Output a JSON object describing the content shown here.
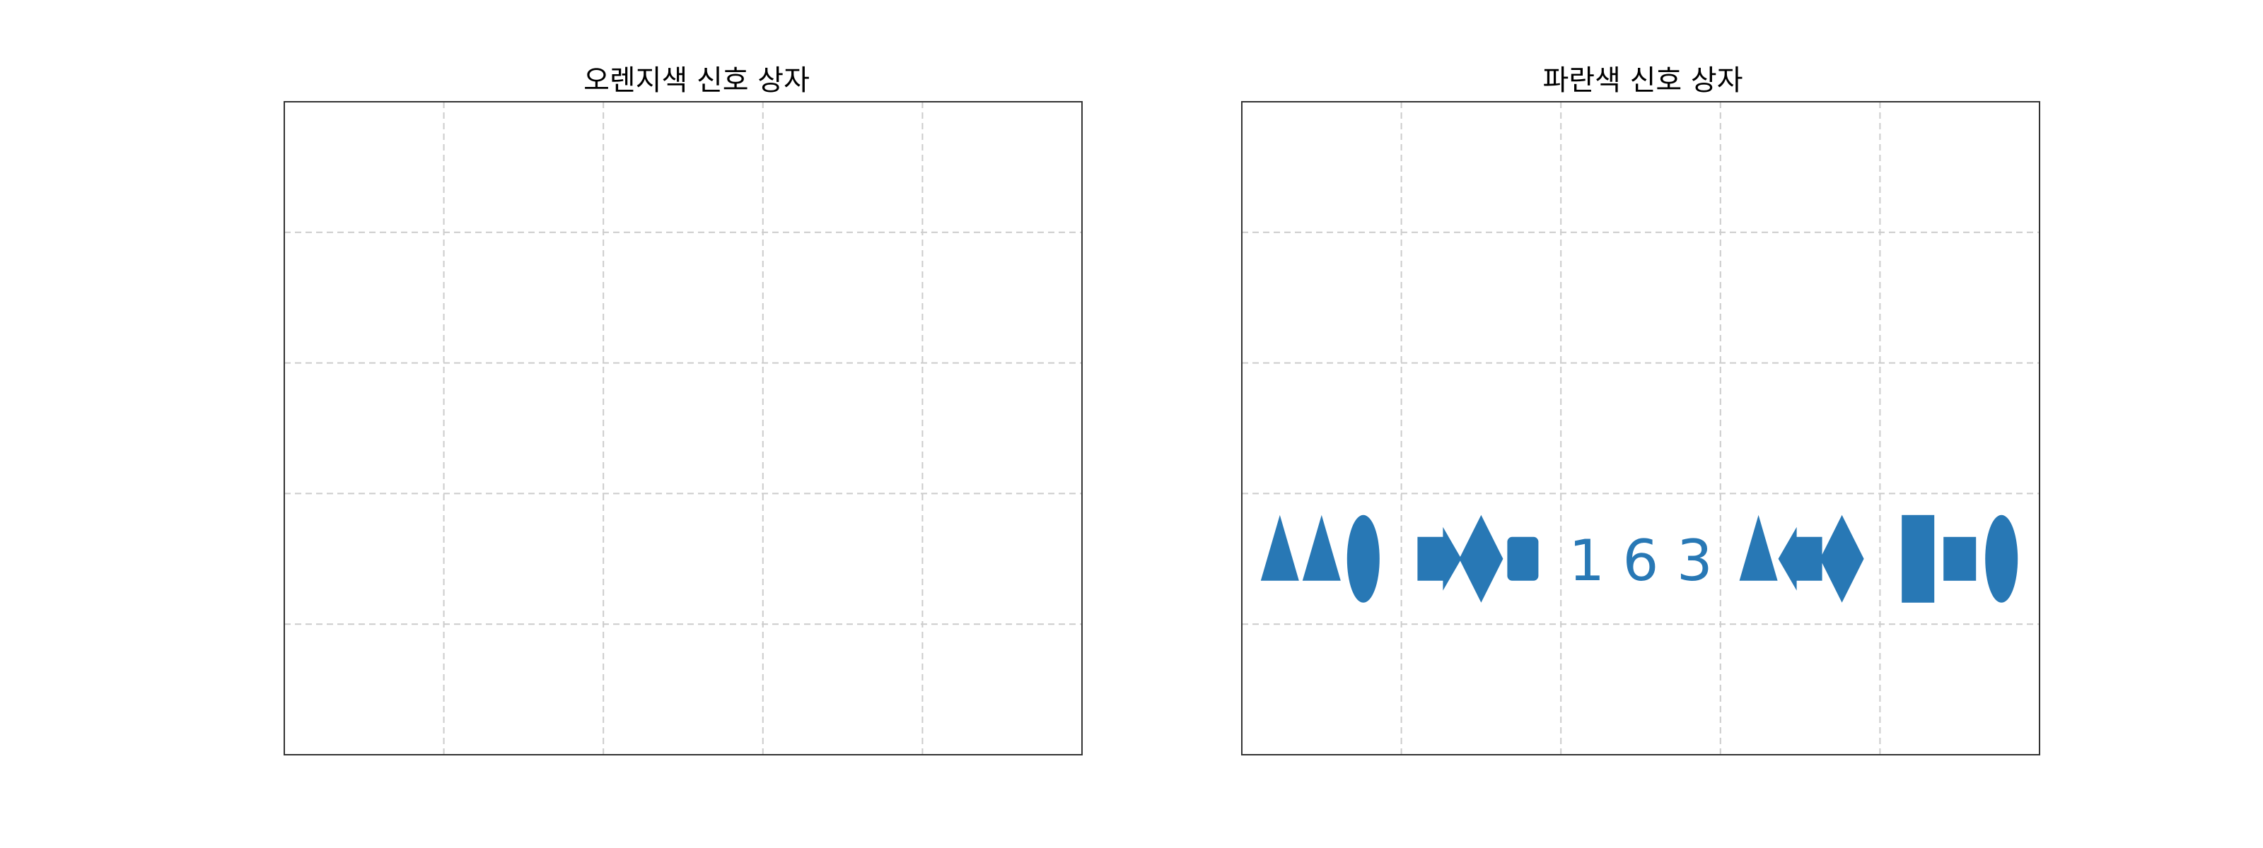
{
  "panels": [
    {
      "title": "오렌지색 신호 상자",
      "cells": []
    },
    {
      "title": "파란색 신호 상자",
      "cells": [
        {
          "row": 3,
          "col": 0,
          "kind": "shapes",
          "items": [
            "triangle",
            "triangle",
            "ellipse"
          ]
        },
        {
          "row": 3,
          "col": 1,
          "kind": "shapes",
          "items": [
            "arrow-right",
            "diamond",
            "rounded-rect"
          ]
        },
        {
          "row": 3,
          "col": 2,
          "kind": "text",
          "text": "1 6 3"
        },
        {
          "row": 3,
          "col": 3,
          "kind": "shapes",
          "items": [
            "triangle",
            "arrow-left",
            "diamond"
          ]
        },
        {
          "row": 3,
          "col": 4,
          "kind": "shapes",
          "items": [
            "tall-rect",
            "rect",
            "ellipse"
          ]
        }
      ]
    }
  ],
  "grid": {
    "rows": 5,
    "cols": 5
  },
  "colors": {
    "shape": "#2878b5",
    "grid": "#cccccc",
    "frame": "#333333"
  }
}
